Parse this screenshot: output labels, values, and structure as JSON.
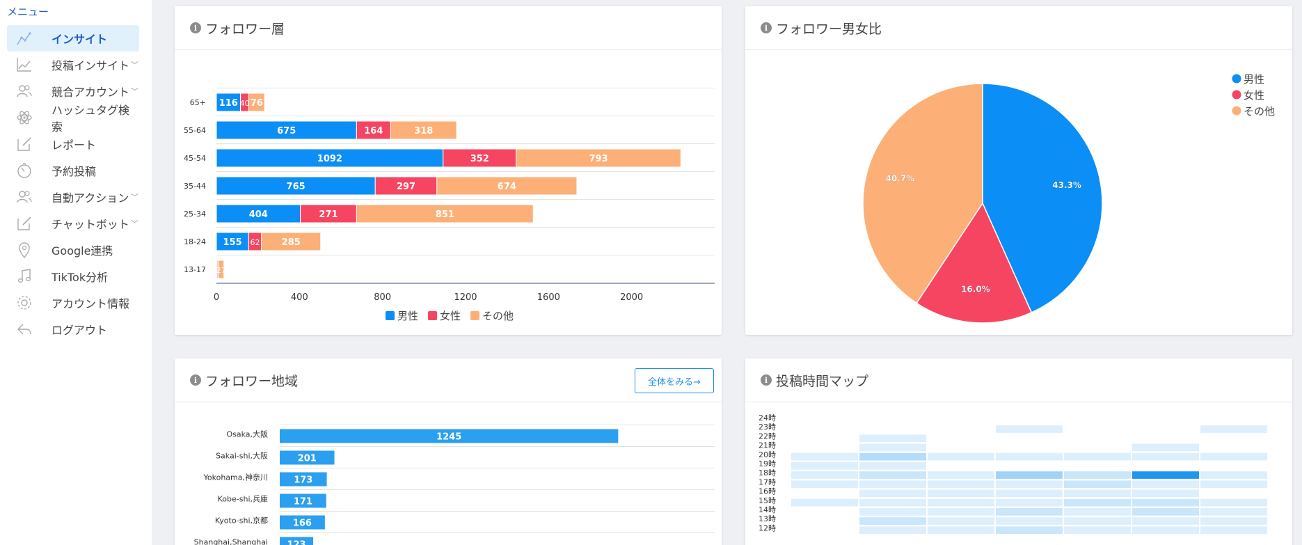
{
  "sidebar": {
    "heading": "メニュー",
    "items": [
      {
        "label": "インサイト",
        "icon": "line-chart-icon",
        "active": true,
        "expandable": false
      },
      {
        "label": "投稿インサイト",
        "icon": "area-chart-icon",
        "active": false,
        "expandable": true
      },
      {
        "label": "競合アカウント",
        "icon": "users-icon",
        "active": false,
        "expandable": true
      },
      {
        "label": "ハッシュタグ検索",
        "icon": "atom-icon",
        "active": false,
        "expandable": false
      },
      {
        "label": "レポート",
        "icon": "edit-icon",
        "active": false,
        "expandable": false
      },
      {
        "label": "予約投稿",
        "icon": "timer-icon",
        "active": false,
        "expandable": false
      },
      {
        "label": "自動アクション",
        "icon": "users-icon",
        "active": false,
        "expandable": true
      },
      {
        "label": "チャットボット",
        "icon": "edit-icon",
        "active": false,
        "expandable": true
      },
      {
        "label": "Google連携",
        "icon": "map-pin-icon",
        "active": false,
        "expandable": false
      },
      {
        "label": "TikTok分析",
        "icon": "music-note-icon",
        "active": false,
        "expandable": false
      },
      {
        "label": "アカウント情報",
        "icon": "gear-icon",
        "active": false,
        "expandable": false
      },
      {
        "label": "ログアウト",
        "icon": "reply-icon",
        "active": false,
        "expandable": false
      }
    ]
  },
  "colors": {
    "male": "#0b8ef6",
    "female": "#f64560",
    "other": "#fcb077",
    "region_bar": "#2b9ff0",
    "heat": "#1e96ef"
  },
  "info_glyph": "i",
  "cards": {
    "age": {
      "title": "フォロワー層"
    },
    "gender": {
      "title": "フォロワー男女比"
    },
    "region": {
      "title": "フォロワー地域",
      "button_label": "全体をみる→"
    },
    "timemap": {
      "title": "投稿時間マップ"
    }
  },
  "chart_data": [
    {
      "type": "bar",
      "orientation": "horizontal",
      "stacked": true,
      "categories": [
        "65+",
        "55-64",
        "45-54",
        "35-44",
        "25-34",
        "18-24",
        "13-17"
      ],
      "series": [
        {
          "name": "男性",
          "values": [
            116,
            675,
            1092,
            765,
            404,
            155,
            4
          ]
        },
        {
          "name": "女性",
          "values": [
            40,
            164,
            352,
            297,
            271,
            62,
            5
          ]
        },
        {
          "name": "その他",
          "values": [
            76,
            318,
            793,
            674,
            851,
            285,
            27
          ]
        }
      ],
      "xticks": [
        "0",
        "400",
        "800",
        "1200",
        "1600",
        "2000"
      ],
      "xlim": [
        0,
        2400
      ],
      "legend": "bottom"
    },
    {
      "type": "pie",
      "labels": [
        "男性",
        "女性",
        "その他"
      ],
      "values": [
        43.3,
        16.0,
        40.7
      ],
      "value_labels": [
        "43.3%",
        "16.0%",
        "40.7%"
      ],
      "legend": "top-right"
    },
    {
      "type": "bar",
      "orientation": "horizontal",
      "categories": [
        "Osaka,大阪",
        "Sakai-shi,大阪",
        "Yokohama,神奈川",
        "Kobe-shi,兵庫",
        "Kyoto-shi,京都",
        "Shanghai,Shanghai"
      ],
      "values": [
        1245,
        201,
        173,
        171,
        166,
        123
      ],
      "xlim": [
        0,
        1600
      ]
    },
    {
      "type": "heatmap",
      "ylabels": [
        "24時",
        "23時",
        "22時",
        "21時",
        "20時",
        "19時",
        "18時",
        "17時",
        "16時",
        "15時",
        "14時",
        "13時",
        "12時"
      ],
      "columns": 7,
      "values": [
        [
          0,
          0,
          0,
          0,
          0,
          0,
          0
        ],
        [
          0,
          0,
          0,
          1,
          0,
          0,
          1
        ],
        [
          0,
          1,
          0,
          0,
          0,
          0,
          0
        ],
        [
          0,
          1,
          0,
          0,
          0,
          1,
          0
        ],
        [
          1,
          3,
          1,
          1,
          1,
          1,
          1
        ],
        [
          1,
          1,
          0,
          0,
          0,
          0,
          0
        ],
        [
          1,
          2,
          1,
          4,
          2,
          10,
          1
        ],
        [
          1,
          1,
          1,
          1,
          2,
          1,
          1
        ],
        [
          0,
          1,
          1,
          1,
          1,
          1,
          0
        ],
        [
          1,
          1,
          1,
          1,
          2,
          2,
          1
        ],
        [
          0,
          1,
          1,
          2,
          1,
          2,
          1
        ],
        [
          0,
          2,
          1,
          1,
          1,
          1,
          1
        ],
        [
          0,
          1,
          1,
          2,
          1,
          1,
          1
        ]
      ]
    }
  ]
}
